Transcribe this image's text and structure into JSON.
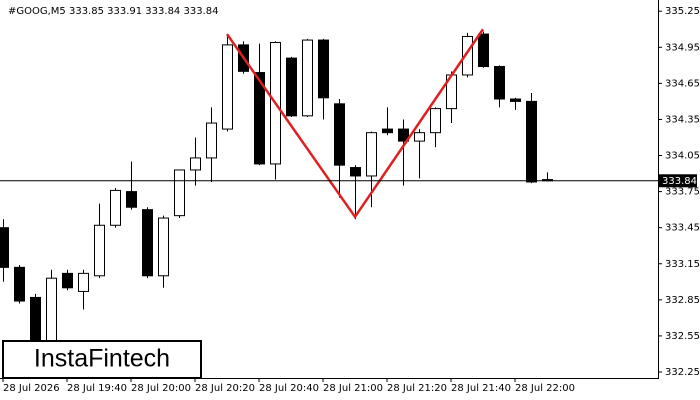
{
  "chart_data": {
    "type": "candlestick",
    "title": "#GOOG,M5  333.85 333.91 333.84 333.84",
    "watermark": "InstaFintech",
    "categories": [
      "28 Jul 2026",
      null,
      null,
      null,
      "28 Jul 19:40",
      null,
      null,
      null,
      "28 Jul 20:00",
      null,
      null,
      null,
      "28 Jul 20:20",
      null,
      null,
      null,
      "28 Jul 20:40",
      null,
      null,
      null,
      "28 Jul 21:00",
      null,
      null,
      null,
      "28 Jul 21:20",
      null,
      null,
      null,
      "28 Jul 21:40",
      null,
      null,
      null,
      "28 Jul 22:00",
      null,
      null
    ],
    "open": [
      333.45,
      333.12,
      332.87,
      332.47,
      333.07,
      332.92,
      333.05,
      333.47,
      333.75,
      333.6,
      333.05,
      333.55,
      333.93,
      334.03,
      334.27,
      334.97,
      334.74,
      333.98,
      334.86,
      334.38,
      335.01,
      334.48,
      333.95,
      333.88,
      334.27,
      334.27,
      334.17,
      334.24,
      334.44,
      334.72,
      335.06,
      334.79,
      334.52,
      334.5,
      333.85
    ],
    "high": [
      333.52,
      333.14,
      332.9,
      333.1,
      333.1,
      333.1,
      333.65,
      333.78,
      334.0,
      333.62,
      333.55,
      333.93,
      334.2,
      334.45,
      335.05,
      335.0,
      334.98,
      335.0,
      334.87,
      335.02,
      335.02,
      334.52,
      333.97,
      334.25,
      334.45,
      334.35,
      334.27,
      334.45,
      334.75,
      335.07,
      335.08,
      334.8,
      334.53,
      334.57,
      333.91
    ],
    "low": [
      333.0,
      332.82,
      332.3,
      332.3,
      332.93,
      332.77,
      333.03,
      333.45,
      333.6,
      333.03,
      332.95,
      333.53,
      333.8,
      333.83,
      334.25,
      334.73,
      333.97,
      333.85,
      334.37,
      334.37,
      334.35,
      333.7,
      333.52,
      333.62,
      334.22,
      333.8,
      333.86,
      334.12,
      334.32,
      334.7,
      334.78,
      334.45,
      334.43,
      333.82,
      333.84
    ],
    "close": [
      333.12,
      332.84,
      332.47,
      333.03,
      332.95,
      333.07,
      333.47,
      333.76,
      333.62,
      333.05,
      333.53,
      333.93,
      334.03,
      334.32,
      334.97,
      334.75,
      333.98,
      334.99,
      334.38,
      335.01,
      334.53,
      333.97,
      333.88,
      334.24,
      334.24,
      334.17,
      334.24,
      334.44,
      334.72,
      335.04,
      334.79,
      334.52,
      334.5,
      333.83,
      333.84
    ],
    "up_color": "#ffffff",
    "down_color": "#000000",
    "current_price": 333.84,
    "pattern": {
      "color": "#e02020",
      "points": [
        {
          "index": 14,
          "value": 335.06
        },
        {
          "index": 22,
          "value": 333.54
        },
        {
          "index": 30,
          "value": 335.1
        }
      ]
    },
    "ylim": [
      332.2,
      335.31
    ],
    "yticks": [
      335.25,
      334.95,
      334.65,
      334.35,
      334.05,
      333.75,
      333.45,
      333.15,
      332.85,
      332.55,
      332.25
    ]
  }
}
